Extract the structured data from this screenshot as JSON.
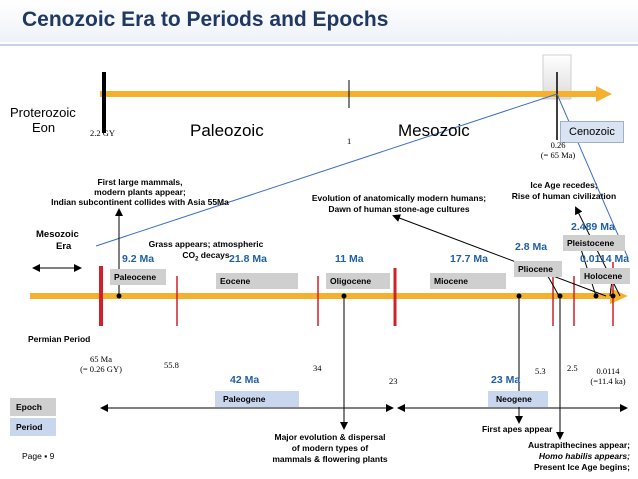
{
  "title": "Cenozoic Era to Periods and Epochs",
  "top_scale": {
    "proterozoic_label_1": "Proterozoic",
    "proterozoic_label_2": "Eon",
    "tick_2_2gy": "2.2 GY",
    "paleozoic": "Paleozoic",
    "tick_1": "1",
    "mesozoic": "Mesozoic",
    "cenozoic": "Cenozoic",
    "tick_026": "0.26",
    "tick_65ma": "(= 65 Ma)"
  },
  "era_label": {
    "line1": "Mesozoic",
    "line2": "Era"
  },
  "permian": "Permian Period",
  "annotations": {
    "mammals_1": "First large mammals,",
    "mammals_2": "modern plants appear;",
    "mammals_3": "Indian subcontinent collides with Asia 55Ma",
    "grass_1": "Grass appears; atmospheric",
    "grass_2": "CO",
    "grass_sub": "2",
    "grass_3": " decays",
    "humans_1": "Evolution of anatomically modern humans;",
    "humans_2": "Dawn of human stone-age cultures",
    "ice_1": "Ice Age recedes;",
    "ice_2": "Rise of human civilization",
    "major_1": "Major evolution & dispersal",
    "major_2": "of modern types of",
    "major_3": "mammals & flowering plants",
    "apes": "First apes appear",
    "austr_1": "Austrapithecines appear;",
    "austr_2": "Homo habilis appears;",
    "austr_3": "Present Ice Age begins;"
  },
  "epochs": [
    {
      "name": "Paleocene",
      "duration": "9.2 Ma"
    },
    {
      "name": "Eocene",
      "duration": "21.8 Ma"
    },
    {
      "name": "Oligocene",
      "duration": "11 Ma"
    },
    {
      "name": "Miocene",
      "duration": "17.7 Ma"
    },
    {
      "name": "Pliocene",
      "duration": "2.8 Ma"
    },
    {
      "name": "Pleistocene",
      "duration": "2.489 Ma"
    },
    {
      "name": "Holocene",
      "duration": "0.0114 Ma"
    }
  ],
  "ticks": {
    "t65a": "65 Ma",
    "t65b": "(= 0.26 GY)",
    "t558": "55.8",
    "t34": "34",
    "t23": "23",
    "t53": "5.3",
    "t25": "2.5",
    "t0114a": "0.0114",
    "t0114b": "(=11.4 ka)"
  },
  "periods": [
    {
      "name": "Paleogene",
      "duration": "42 Ma"
    },
    {
      "name": "Neogene",
      "duration": "23 Ma"
    }
  ],
  "legend": {
    "epoch": "Epoch",
    "period": "Period"
  },
  "page": "Page",
  "page_number": "9",
  "colors": {
    "title": "#1f3864",
    "duration": "#1f5fa8",
    "arrow": "#f5b12e",
    "tick": "#d0202a",
    "epoch_box": "#cfcfcf",
    "period_box": "#c9d7ee"
  }
}
